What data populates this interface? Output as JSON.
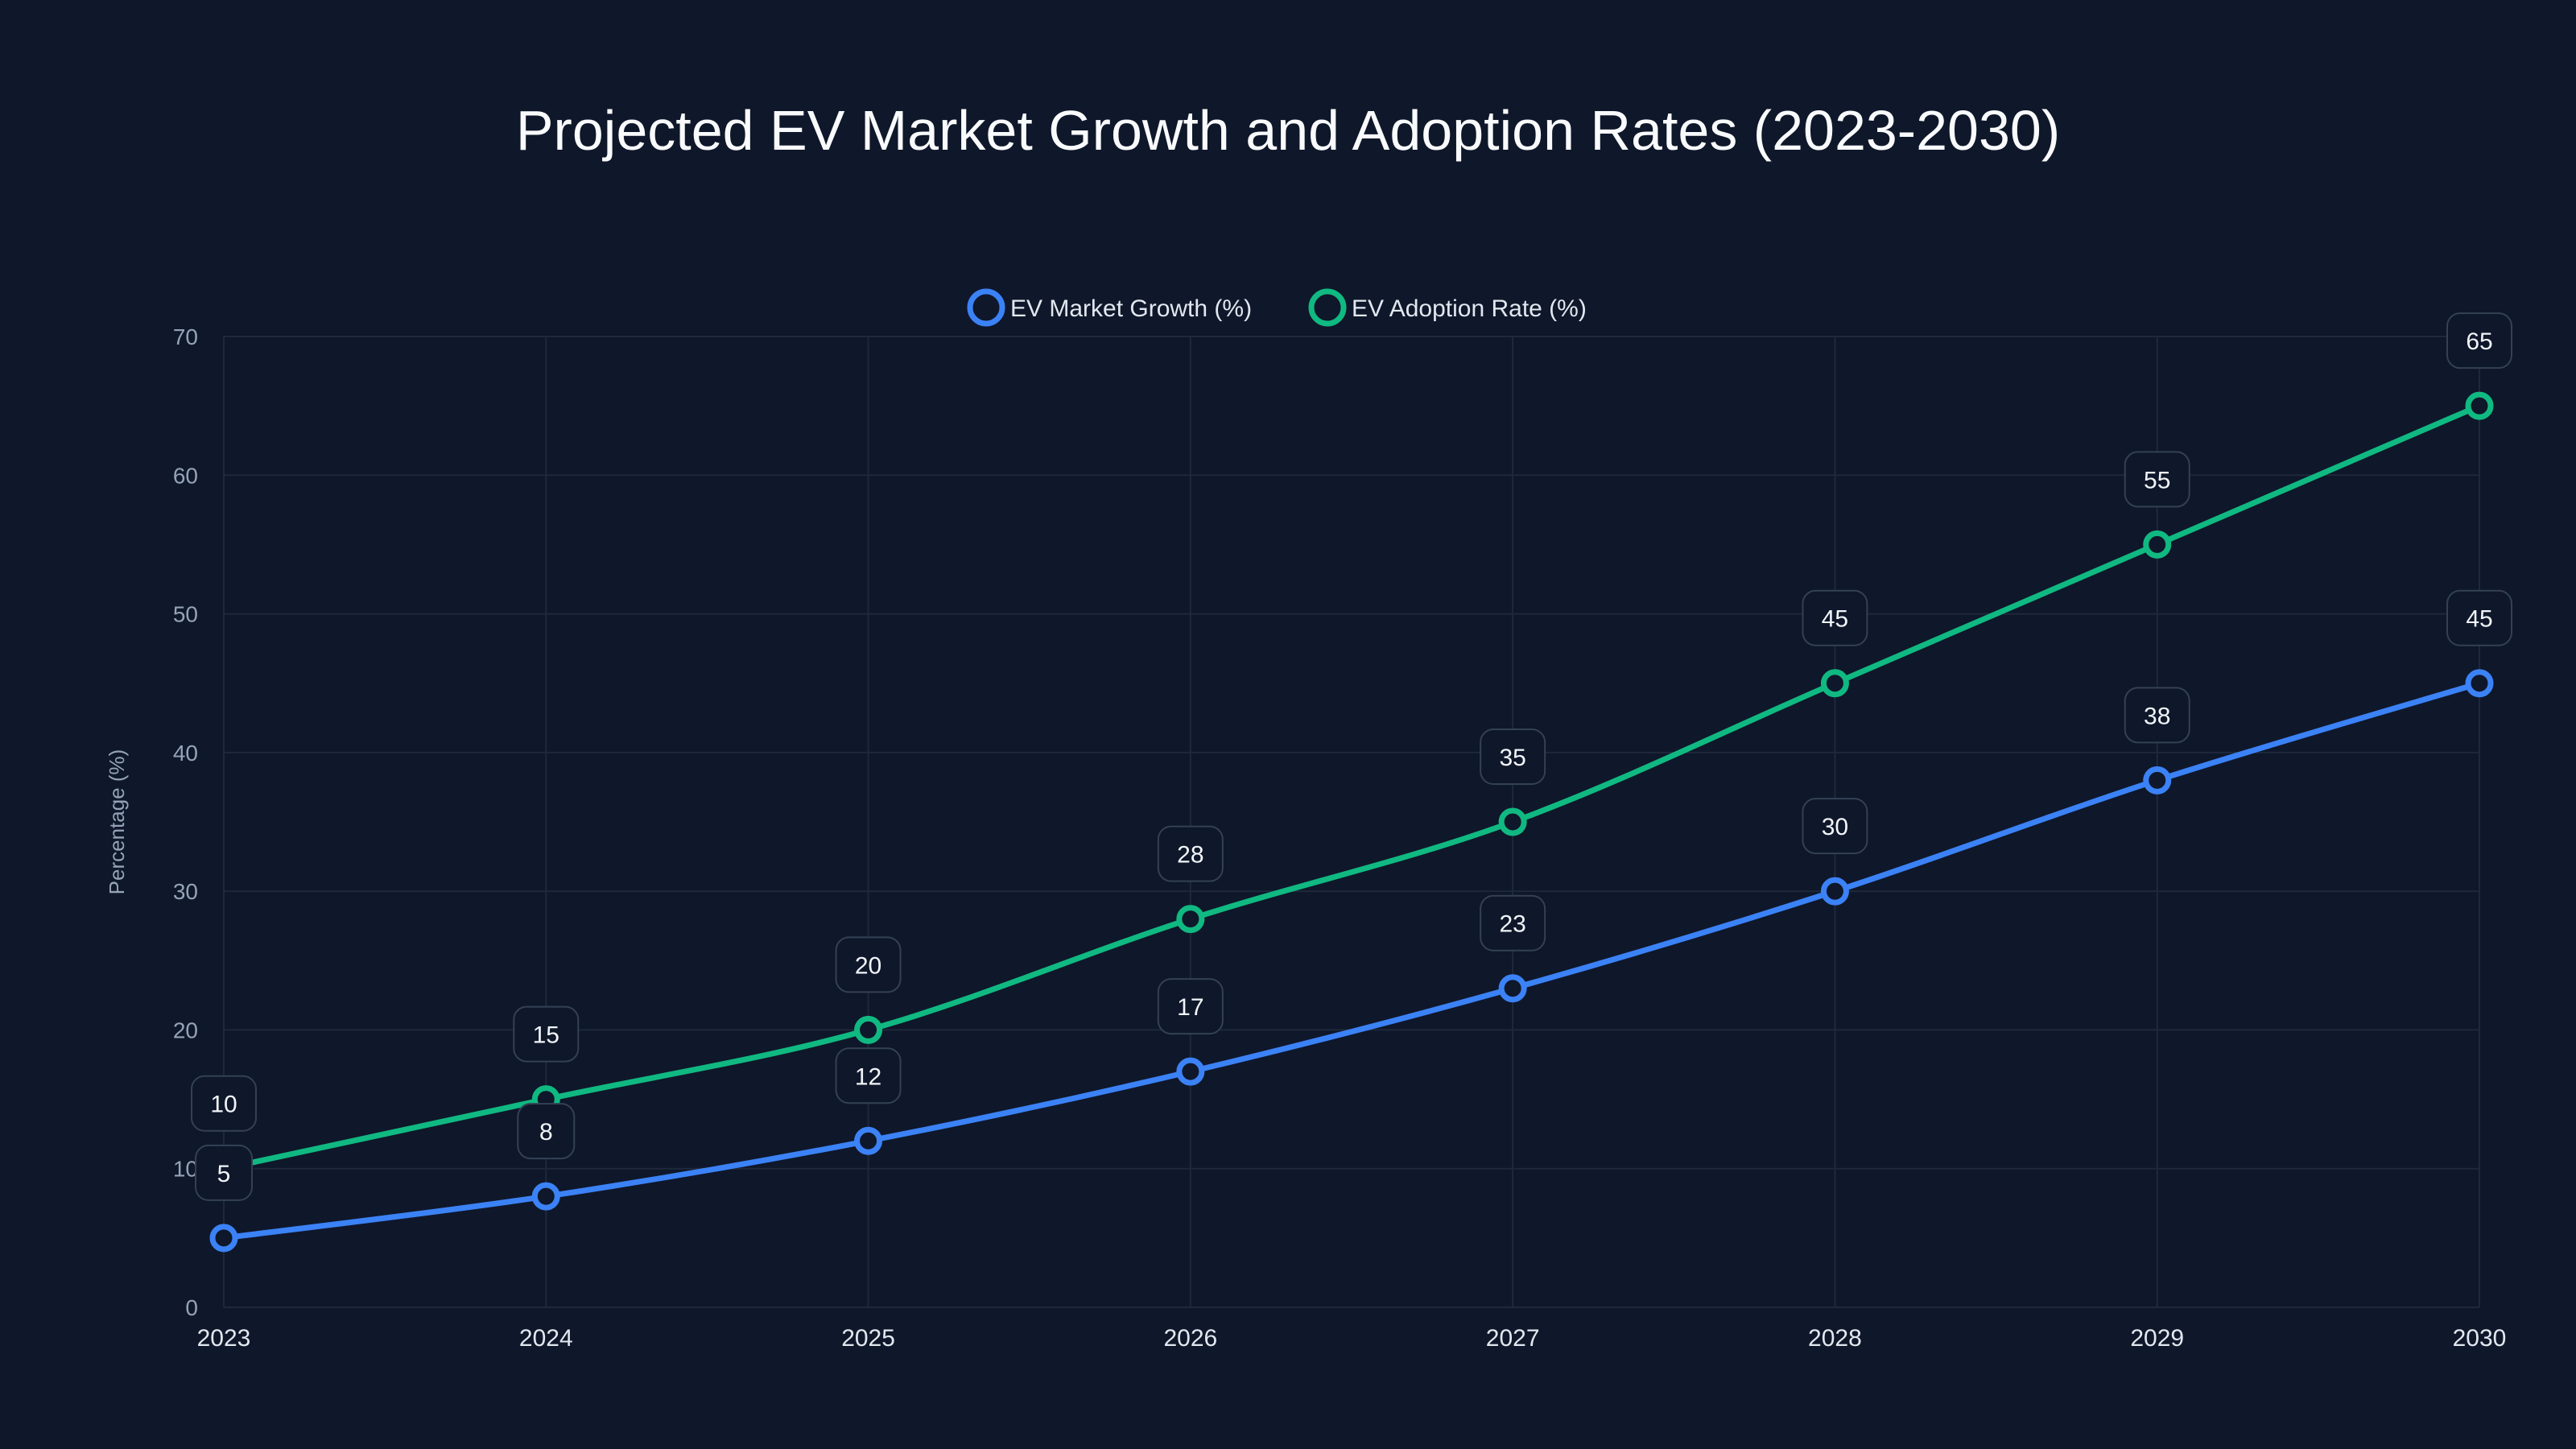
{
  "chart_data": {
    "type": "line",
    "title": "Projected EV Market Growth and Adoption Rates (2023-2030)",
    "xlabel": "",
    "ylabel": "Percentage (%)",
    "x": [
      "2023",
      "2024",
      "2025",
      "2026",
      "2027",
      "2028",
      "2029",
      "2030"
    ],
    "ylim": [
      0,
      70
    ],
    "yticks": [
      0,
      10,
      20,
      30,
      40,
      50,
      60,
      70
    ],
    "grid": true,
    "legend_position": "top-center",
    "series": [
      {
        "name": "EV Market Growth (%)",
        "color": "#3b82f6",
        "values": [
          5,
          8,
          12,
          17,
          23,
          30,
          38,
          45
        ]
      },
      {
        "name": "EV Adoption Rate (%)",
        "color": "#10b981",
        "values": [
          10,
          15,
          20,
          28,
          35,
          45,
          55,
          65
        ]
      }
    ]
  }
}
